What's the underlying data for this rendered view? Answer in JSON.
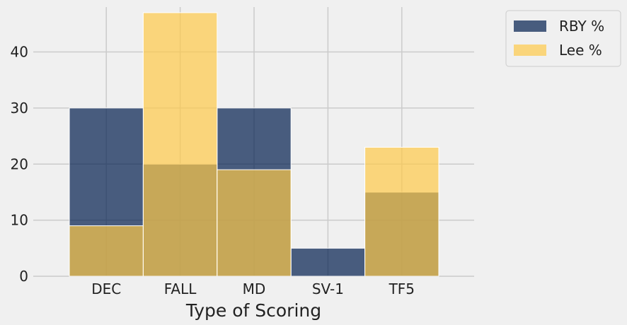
{
  "chart_data": {
    "type": "bar",
    "categories": [
      "DEC",
      "FALL",
      "MD",
      "SV-1",
      "TF5"
    ],
    "series": [
      {
        "name": "RBY %",
        "values": [
          30,
          20,
          30,
          5,
          15
        ],
        "color": "#001c4d"
      },
      {
        "name": "Lee %",
        "values": [
          9,
          47,
          19,
          0,
          23
        ],
        "color": "#fdc948"
      }
    ],
    "series_opacity": 0.7,
    "xlabel": "Type of Scoring",
    "ylabel": "",
    "ylim": [
      0,
      48
    ],
    "yticks": [
      0,
      10,
      20,
      30,
      40
    ],
    "grid": true,
    "legend_position": "outside-top-right",
    "colors": {
      "background": "#f0f0f0",
      "grid": "#cbcbcb",
      "text": "#222222"
    }
  }
}
